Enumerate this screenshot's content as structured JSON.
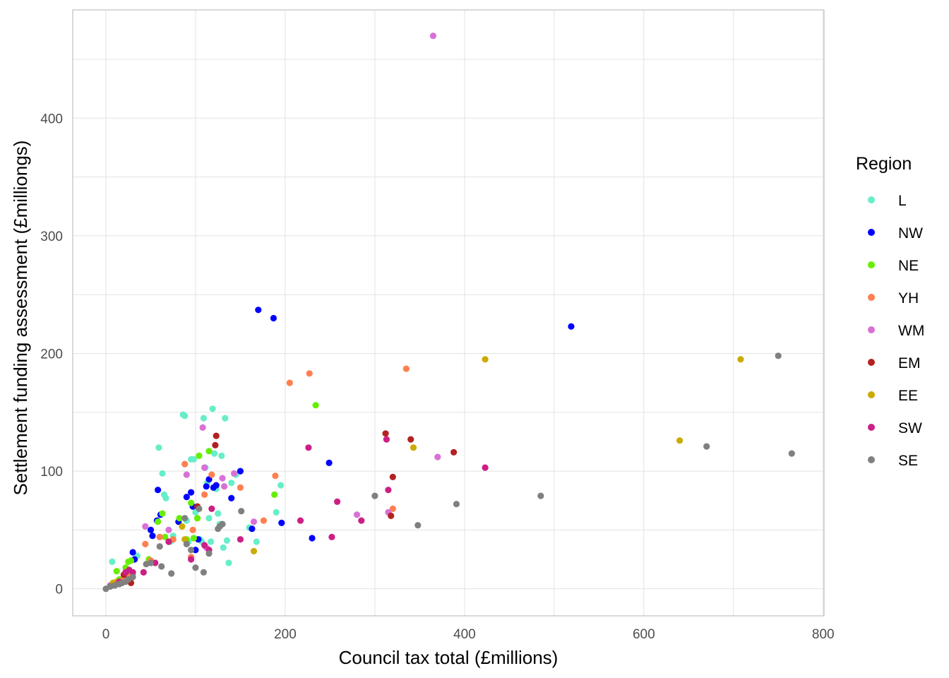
{
  "chart_data": {
    "type": "scatter",
    "title": "",
    "xlabel": "Council tax total (£millions)",
    "ylabel": "Settlement funding assessment (£milliongs)",
    "xlim": [
      -37,
      801
    ],
    "ylim": [
      -23,
      492
    ],
    "x_ticks": [
      0,
      200,
      400,
      600,
      800
    ],
    "x_tick_labels": [
      "0",
      "200",
      "400",
      "600",
      "800"
    ],
    "y_ticks": [
      0,
      100,
      200,
      300,
      400
    ],
    "y_tick_labels": [
      "0",
      "100",
      "200",
      "300",
      "400"
    ],
    "grid": true,
    "legend_title": "Region",
    "legend_position": "right",
    "series": [
      {
        "name": "L",
        "color": "#66EEC8",
        "points": [
          [
            7,
            23
          ],
          [
            10,
            3
          ],
          [
            15,
            5
          ],
          [
            20,
            8
          ],
          [
            25,
            15
          ],
          [
            30,
            12
          ],
          [
            35,
            28
          ],
          [
            59,
            120
          ],
          [
            63,
            98
          ],
          [
            65,
            80
          ],
          [
            67,
            77
          ],
          [
            72,
            40
          ],
          [
            75,
            45
          ],
          [
            86,
            148
          ],
          [
            88,
            147
          ],
          [
            90,
            58
          ],
          [
            92,
            40
          ],
          [
            95,
            110
          ],
          [
            98,
            110
          ],
          [
            100,
            65
          ],
          [
            102,
            60
          ],
          [
            105,
            42
          ],
          [
            107,
            40
          ],
          [
            109,
            145
          ],
          [
            111,
            103
          ],
          [
            113,
            90
          ],
          [
            115,
            60
          ],
          [
            117,
            40
          ],
          [
            119,
            153
          ],
          [
            121,
            115
          ],
          [
            123,
            85
          ],
          [
            125,
            64
          ],
          [
            127,
            55
          ],
          [
            129,
            113
          ],
          [
            131,
            35
          ],
          [
            133,
            145
          ],
          [
            135,
            41
          ],
          [
            137,
            22
          ],
          [
            140,
            90
          ],
          [
            145,
            97
          ],
          [
            160,
            52
          ],
          [
            168,
            40
          ],
          [
            190,
            65
          ],
          [
            195,
            88
          ]
        ]
      },
      {
        "name": "NW",
        "color": "#0000FF",
        "points": [
          [
            5,
            3
          ],
          [
            10,
            5
          ],
          [
            15,
            5
          ],
          [
            20,
            10
          ],
          [
            25,
            15
          ],
          [
            30,
            31
          ],
          [
            32,
            25
          ],
          [
            50,
            50
          ],
          [
            52,
            45
          ],
          [
            57,
            58
          ],
          [
            58,
            84
          ],
          [
            61,
            63
          ],
          [
            81,
            57
          ],
          [
            90,
            78
          ],
          [
            95,
            82
          ],
          [
            97,
            70
          ],
          [
            100,
            33
          ],
          [
            103,
            42
          ],
          [
            112,
            87
          ],
          [
            115,
            93
          ],
          [
            120,
            86
          ],
          [
            123,
            88
          ],
          [
            140,
            77
          ],
          [
            150,
            100
          ],
          [
            163,
            51
          ],
          [
            170,
            237
          ],
          [
            187,
            230
          ],
          [
            196,
            56
          ],
          [
            230,
            43
          ],
          [
            249,
            107
          ],
          [
            519,
            223
          ]
        ]
      },
      {
        "name": "NE",
        "color": "#66EE00",
        "points": [
          [
            8,
            5
          ],
          [
            12,
            15
          ],
          [
            15,
            8
          ],
          [
            22,
            18
          ],
          [
            25,
            23
          ],
          [
            28,
            24
          ],
          [
            48,
            25
          ],
          [
            58,
            57
          ],
          [
            63,
            64
          ],
          [
            66,
            44
          ],
          [
            82,
            60
          ],
          [
            90,
            42
          ],
          [
            95,
            73
          ],
          [
            98,
            43
          ],
          [
            102,
            60
          ],
          [
            104,
            113
          ],
          [
            115,
            117
          ],
          [
            188,
            80
          ],
          [
            234,
            156
          ]
        ]
      },
      {
        "name": "YH",
        "color": "#FF7F50",
        "points": [
          [
            20,
            10
          ],
          [
            25,
            12
          ],
          [
            44,
            38
          ],
          [
            50,
            24
          ],
          [
            60,
            44
          ],
          [
            70,
            40
          ],
          [
            75,
            42
          ],
          [
            88,
            106
          ],
          [
            95,
            27
          ],
          [
            97,
            50
          ],
          [
            110,
            80
          ],
          [
            118,
            97
          ],
          [
            150,
            86
          ],
          [
            176,
            58
          ],
          [
            189,
            96
          ],
          [
            205,
            175
          ],
          [
            227,
            183
          ],
          [
            320,
            68
          ],
          [
            335,
            187
          ]
        ]
      },
      {
        "name": "WM",
        "color": "#DA70D6",
        "points": [
          [
            5,
            3
          ],
          [
            10,
            4
          ],
          [
            15,
            6
          ],
          [
            44,
            53
          ],
          [
            70,
            50
          ],
          [
            90,
            97
          ],
          [
            108,
            137
          ],
          [
            110,
            103
          ],
          [
            112,
            35
          ],
          [
            130,
            94
          ],
          [
            132,
            87
          ],
          [
            143,
            98
          ],
          [
            165,
            57
          ],
          [
            280,
            63
          ],
          [
            315,
            65
          ],
          [
            365,
            470
          ],
          [
            370,
            112
          ]
        ]
      },
      {
        "name": "EM",
        "color": "#B22222",
        "points": [
          [
            5,
            2
          ],
          [
            10,
            3
          ],
          [
            20,
            12
          ],
          [
            28,
            5
          ],
          [
            102,
            70
          ],
          [
            122,
            122
          ],
          [
            123,
            130
          ],
          [
            312,
            132
          ],
          [
            318,
            62
          ],
          [
            320,
            95
          ],
          [
            340,
            127
          ],
          [
            388,
            116
          ]
        ]
      },
      {
        "name": "EE",
        "color": "#CCAA00",
        "points": [
          [
            5,
            2
          ],
          [
            8,
            5
          ],
          [
            12,
            6
          ],
          [
            85,
            53
          ],
          [
            88,
            42
          ],
          [
            165,
            32
          ],
          [
            343,
            120
          ],
          [
            423,
            195
          ],
          [
            640,
            126
          ],
          [
            708,
            195
          ]
        ]
      },
      {
        "name": "SW",
        "color": "#CC1F85",
        "points": [
          [
            5,
            2
          ],
          [
            10,
            3
          ],
          [
            15,
            6
          ],
          [
            22,
            14
          ],
          [
            26,
            16
          ],
          [
            30,
            14
          ],
          [
            42,
            14
          ],
          [
            55,
            22
          ],
          [
            70,
            40
          ],
          [
            95,
            25
          ],
          [
            110,
            37
          ],
          [
            115,
            33
          ],
          [
            118,
            68
          ],
          [
            150,
            42
          ],
          [
            217,
            58
          ],
          [
            226,
            120
          ],
          [
            252,
            44
          ],
          [
            258,
            74
          ],
          [
            285,
            58
          ],
          [
            313,
            127
          ],
          [
            315,
            84
          ],
          [
            423,
            103
          ]
        ]
      },
      {
        "name": "SE",
        "color": "#808080",
        "points": [
          [
            0,
            0
          ],
          [
            5,
            2
          ],
          [
            10,
            3
          ],
          [
            15,
            4
          ],
          [
            18,
            5
          ],
          [
            22,
            6
          ],
          [
            25,
            8
          ],
          [
            30,
            10
          ],
          [
            45,
            21
          ],
          [
            50,
            22
          ],
          [
            60,
            36
          ],
          [
            62,
            19
          ],
          [
            73,
            13
          ],
          [
            88,
            60
          ],
          [
            90,
            38
          ],
          [
            95,
            33
          ],
          [
            100,
            18
          ],
          [
            104,
            68
          ],
          [
            109,
            14
          ],
          [
            115,
            30
          ],
          [
            125,
            51
          ],
          [
            127,
            53
          ],
          [
            130,
            55
          ],
          [
            151,
            66
          ],
          [
            300,
            79
          ],
          [
            348,
            54
          ],
          [
            391,
            72
          ],
          [
            485,
            79
          ],
          [
            670,
            121
          ],
          [
            750,
            198
          ],
          [
            765,
            115
          ]
        ]
      }
    ]
  }
}
